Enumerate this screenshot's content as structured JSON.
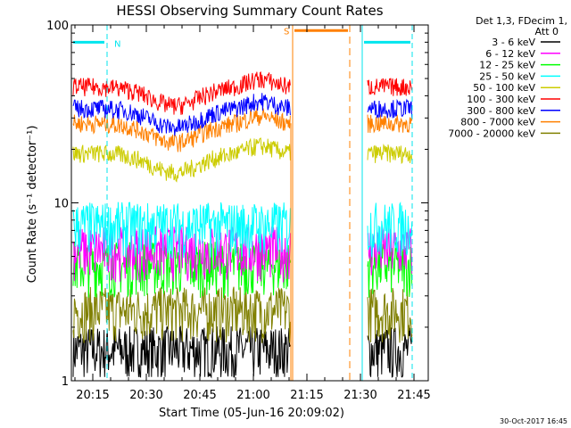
{
  "chart_data": {
    "type": "line",
    "title": "HESSI Observing Summary Count Rates",
    "xlabel": "Start Time (05-Jun-16 20:09:02)",
    "ylabel": "Count Rate (s⁻¹ detector⁻¹)",
    "y_scale": "log",
    "ylim": [
      1,
      100
    ],
    "xlim_minutes": [
      0,
      100
    ],
    "x_tick_labels": [
      "20:15",
      "20:30",
      "20:45",
      "21:00",
      "21:15",
      "21:30",
      "21:45"
    ],
    "y_tick_labels": [
      "1",
      "10",
      "100"
    ],
    "legend_header": [
      "Det 1,3, FDecim 1,",
      "Att 0"
    ],
    "legend_position": "top-right outside",
    "timestamp": "30-Oct-2017 16:45",
    "flags": [
      {
        "label": "N",
        "color": "#00e5ee"
      },
      {
        "label": "S",
        "color": "#ff8000"
      }
    ],
    "series": [
      {
        "name": "3 - 6 keV",
        "color": "#000000",
        "typical_rate": 1.5
      },
      {
        "name": "6 - 12 keV",
        "color": "#ff00ff",
        "typical_rate": 5.5
      },
      {
        "name": "12 - 25 keV",
        "color": "#00ff00",
        "typical_rate": 4.5
      },
      {
        "name": "25 - 50 keV",
        "color": "#00ffff",
        "typical_rate": 7.5
      },
      {
        "name": "50 - 100 keV",
        "color": "#cccc00",
        "typical_rate": 19
      },
      {
        "name": "100 - 300 keV",
        "color": "#ff0000",
        "typical_rate": 45
      },
      {
        "name": "300 - 800 keV",
        "color": "#0000ff",
        "typical_rate": 34
      },
      {
        "name": "800 - 7000 keV",
        "color": "#ff8000",
        "typical_rate": 28
      },
      {
        "name": "7000 - 20000 keV",
        "color": "#808000",
        "typical_rate": 2.5
      }
    ]
  }
}
